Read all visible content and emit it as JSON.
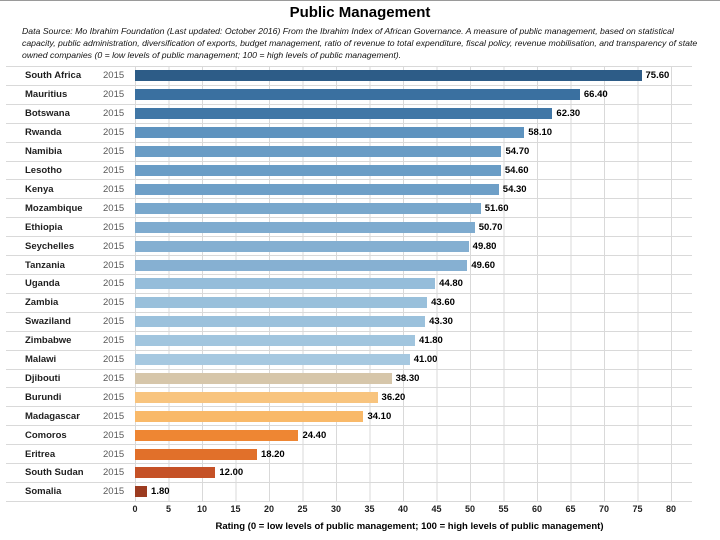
{
  "title": "Public Management",
  "subtitle": "Data Source: Mo Ibrahim Foundation (Last updated: October 2016) From the Ibrahim Index of African Governance. A measure of public management, based on statistical capacity, public administration, diversification of exports, budget management, ratio of revenue to total expenditure, fiscal policy, revenue mobilisation, and transparency of state owned companies (0 = low levels of public management; 100 = high levels of public management).",
  "chart_data": {
    "type": "bar",
    "orientation": "horizontal",
    "title": "Public Management",
    "xlabel": "Rating (0 = low levels of public management; 100 = high levels of public management)",
    "ylabel": "",
    "year": "2015",
    "xlim": [
      0,
      80
    ],
    "xticks": [
      0,
      5,
      10,
      15,
      20,
      25,
      30,
      35,
      40,
      45,
      50,
      55,
      60,
      65,
      70,
      75,
      80
    ],
    "grid": true,
    "legend": false,
    "categories": [
      "South Africa",
      "Mauritius",
      "Botswana",
      "Rwanda",
      "Namibia",
      "Lesotho",
      "Kenya",
      "Mozambique",
      "Ethiopia",
      "Seychelles",
      "Tanzania",
      "Uganda",
      "Zambia",
      "Swaziland",
      "Zimbabwe",
      "Malawi",
      "Djibouti",
      "Burundi",
      "Madagascar",
      "Comoros",
      "Eritrea",
      "South Sudan",
      "Somalia"
    ],
    "values": [
      75.6,
      66.4,
      62.3,
      58.1,
      54.7,
      54.6,
      54.3,
      51.6,
      50.7,
      49.8,
      49.6,
      44.8,
      43.6,
      43.3,
      41.8,
      41.0,
      38.3,
      36.2,
      34.1,
      24.4,
      18.2,
      12.0,
      1.8
    ],
    "bar_colors": [
      "#2d5c87",
      "#3a70a0",
      "#4177a6",
      "#5e93bf",
      "#699cc5",
      "#6a9dc6",
      "#6e9fc7",
      "#78a7cc",
      "#7eabcf",
      "#84afd1",
      "#86b0d2",
      "#95bdda",
      "#99c0db",
      "#9bc1dc",
      "#a1c5de",
      "#a6c8e0",
      "#d6c6aa",
      "#f8c47e",
      "#f9b969",
      "#ee8633",
      "#e1702a",
      "#c55126",
      "#9c3b20"
    ],
    "gridline_color": "#d9d9d9",
    "value_label_format": "2-decimals"
  }
}
